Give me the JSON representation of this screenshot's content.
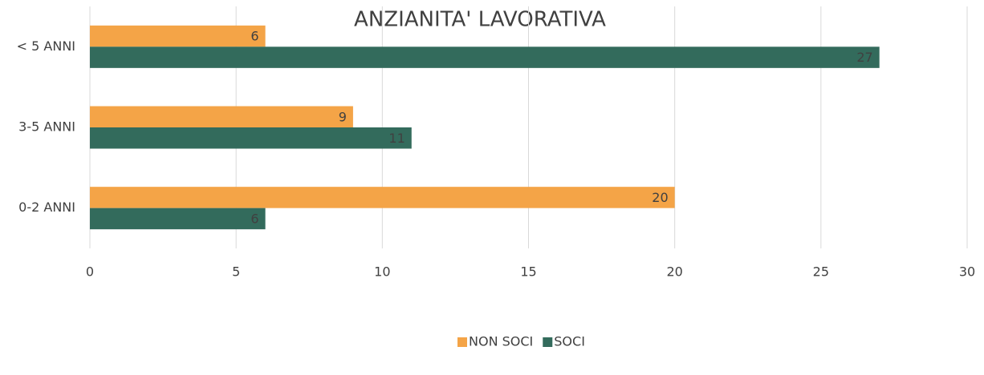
{
  "chart_data": {
    "type": "bar",
    "orientation": "horizontal",
    "title": "ANZIANITA' LAVORATIVA",
    "categories": [
      "< 5 ANNI",
      "3-5 ANNI",
      "0-2 ANNI"
    ],
    "series": [
      {
        "name": "NON SOCI",
        "color": "#f4a447",
        "values": [
          6,
          9,
          20
        ]
      },
      {
        "name": "SOCI",
        "color": "#336b5c",
        "values": [
          27,
          11,
          6
        ]
      }
    ],
    "xlim": [
      0,
      30
    ],
    "xticks": [
      0,
      5,
      10,
      15,
      20,
      25,
      30
    ],
    "grid": true,
    "legend": "bottom"
  }
}
